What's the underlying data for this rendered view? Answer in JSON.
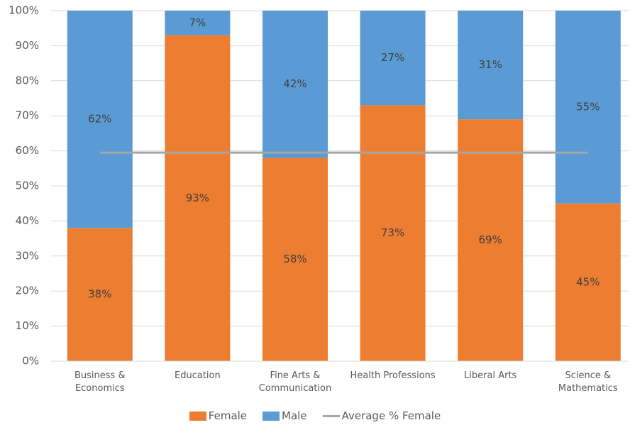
{
  "chart_data": {
    "type": "bar",
    "stacked": true,
    "categories": [
      "Business & Economics",
      "Education",
      "Fine Arts & Communication",
      "Health Professions",
      "Liberal Arts",
      "Science & Mathematics"
    ],
    "series": [
      {
        "name": "Female",
        "color": "#ed7d31",
        "values": [
          38,
          93,
          58,
          73,
          69,
          45
        ],
        "value_labels": [
          "38%",
          "93%",
          "58%",
          "73%",
          "69%",
          "45%"
        ]
      },
      {
        "name": "Male",
        "color": "#5b9bd5",
        "values": [
          62,
          7,
          42,
          27,
          31,
          55
        ],
        "value_labels": [
          "62%",
          "7%",
          "42%",
          "27%",
          "31%",
          "55%"
        ]
      },
      {
        "name": "Average % Female",
        "type": "line",
        "color": "#a5a5a5",
        "values": [
          59.5,
          59.5,
          59.5,
          59.5,
          59.5,
          59.5
        ]
      }
    ],
    "ylim": [
      0,
      100
    ],
    "yticks": [
      {
        "value": 0,
        "label": "0%"
      },
      {
        "value": 10,
        "label": "10%"
      },
      {
        "value": 20,
        "label": "20%"
      },
      {
        "value": 30,
        "label": "30%"
      },
      {
        "value": 40,
        "label": "40%"
      },
      {
        "value": 50,
        "label": "50%"
      },
      {
        "value": 60,
        "label": "60%"
      },
      {
        "value": 70,
        "label": "70%"
      },
      {
        "value": 80,
        "label": "80%"
      },
      {
        "value": 90,
        "label": "90%"
      },
      {
        "value": 100,
        "label": "100%"
      }
    ],
    "grid": true
  }
}
